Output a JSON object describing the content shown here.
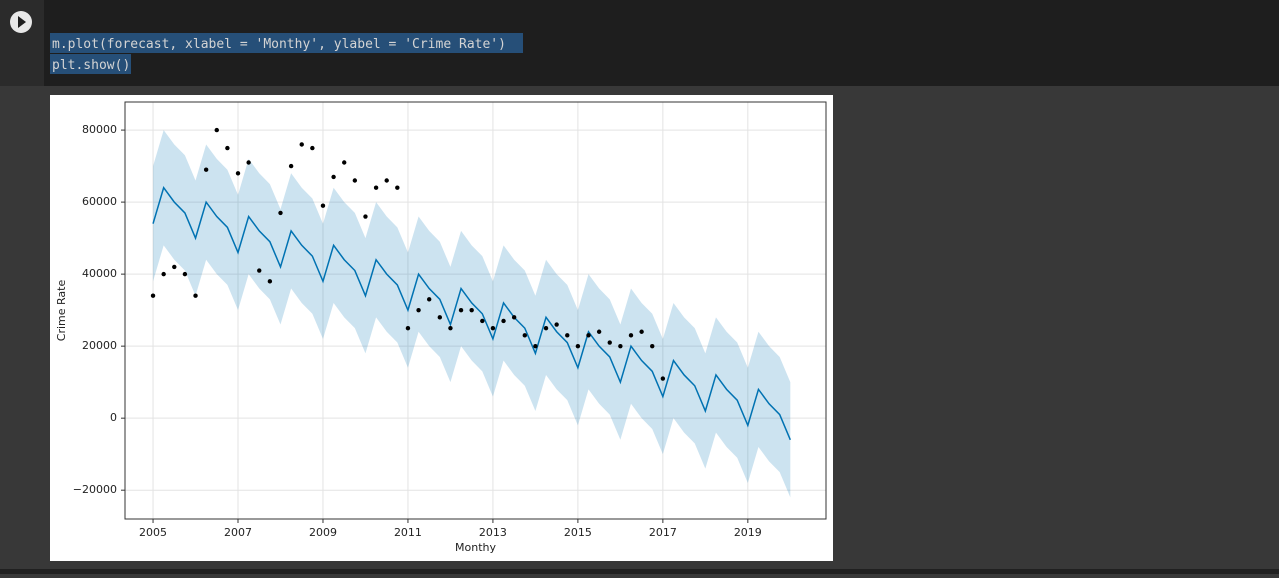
{
  "code": {
    "lines": [
      "m.plot(forecast, xlabel = 'Monthy', ylabel = 'Crime Rate')",
      "plt.show()"
    ]
  },
  "chart_data": {
    "type": "line",
    "xlabel": "Monthy",
    "ylabel": "Crime Rate",
    "xlim": [
      2004.34,
      2020.84
    ],
    "ylim": [
      -28000,
      87800
    ],
    "xticks": [
      2005,
      2007,
      2009,
      2011,
      2013,
      2015,
      2017,
      2019
    ],
    "yticks": [
      {
        "value": -20000,
        "label": "−20000"
      },
      0,
      20000,
      40000,
      60000,
      80000
    ],
    "grid": true,
    "line_color": "#0072b2",
    "band_color": "#0072b2",
    "point_color": "#000000",
    "x": [
      2005,
      2005.25,
      2005.5,
      2005.75,
      2006,
      2006.25,
      2006.5,
      2006.75,
      2007,
      2007.25,
      2007.5,
      2007.75,
      2008,
      2008.25,
      2008.5,
      2008.75,
      2009,
      2009.25,
      2009.5,
      2009.75,
      2010,
      2010.25,
      2010.5,
      2010.75,
      2011,
      2011.25,
      2011.5,
      2011.75,
      2012,
      2012.25,
      2012.5,
      2012.75,
      2013,
      2013.25,
      2013.5,
      2013.75,
      2014,
      2014.25,
      2014.5,
      2014.75,
      2015,
      2015.25,
      2015.5,
      2015.75,
      2016,
      2016.25,
      2016.5,
      2016.75,
      2017,
      2017.25,
      2017.5,
      2017.75,
      2018,
      2018.25,
      2018.5,
      2018.75,
      2019,
      2019.25,
      2019.5,
      2019.75,
      2020
    ],
    "forecast": [
      54000,
      64000,
      60000,
      57000,
      50000,
      60000,
      56000,
      53000,
      46000,
      56000,
      52000,
      49000,
      42000,
      52000,
      48000,
      45000,
      38000,
      48000,
      44000,
      41000,
      34000,
      44000,
      40000,
      37000,
      30000,
      40000,
      36000,
      33000,
      26000,
      36000,
      32000,
      29000,
      22000,
      32000,
      28000,
      25000,
      18000,
      28000,
      24000,
      21000,
      14000,
      24000,
      20000,
      17000,
      10000,
      20000,
      16000,
      13000,
      6000,
      16000,
      12000,
      9000,
      2000,
      12000,
      8000,
      5000,
      -2000,
      8000,
      4000,
      1000,
      -6000
    ],
    "lower": [
      38000,
      48000,
      44000,
      41000,
      34000,
      44000,
      40000,
      37000,
      30000,
      40000,
      36000,
      33000,
      26000,
      36000,
      32000,
      29000,
      22000,
      32000,
      28000,
      25000,
      18000,
      28000,
      24000,
      21000,
      14000,
      24000,
      20000,
      17000,
      10000,
      20000,
      16000,
      13000,
      6000,
      16000,
      12000,
      9000,
      2000,
      12000,
      8000,
      5000,
      -2000,
      8000,
      4000,
      1000,
      -6000,
      4000,
      0,
      -3000,
      -10000,
      0,
      -4000,
      -7000,
      -14000,
      -4000,
      -8000,
      -11000,
      -18000,
      -8000,
      -12000,
      -15000,
      -22000
    ],
    "upper": [
      70000,
      80000,
      76000,
      73000,
      66000,
      76000,
      72000,
      69000,
      62000,
      72000,
      68000,
      65000,
      58000,
      68000,
      64000,
      61000,
      54000,
      64000,
      60000,
      57000,
      50000,
      60000,
      56000,
      53000,
      46000,
      56000,
      52000,
      49000,
      42000,
      52000,
      48000,
      45000,
      38000,
      48000,
      44000,
      41000,
      34000,
      44000,
      40000,
      37000,
      30000,
      40000,
      36000,
      33000,
      26000,
      36000,
      32000,
      29000,
      22000,
      32000,
      28000,
      25000,
      18000,
      28000,
      24000,
      21000,
      14000,
      24000,
      20000,
      17000,
      10000
    ],
    "observed_x": [
      2005,
      2005.25,
      2005.5,
      2005.75,
      2006,
      2006.25,
      2006.5,
      2006.75,
      2007,
      2007.25,
      2007.5,
      2007.75,
      2008,
      2008.25,
      2008.5,
      2008.75,
      2009,
      2009.25,
      2009.5,
      2009.75,
      2010,
      2010.25,
      2010.5,
      2010.75,
      2011,
      2011.25,
      2011.5,
      2011.75,
      2012,
      2012.25,
      2012.5,
      2012.75,
      2013,
      2013.25,
      2013.5,
      2013.75,
      2014,
      2014.25,
      2014.5,
      2014.75,
      2015,
      2015.25,
      2015.5,
      2015.75,
      2016,
      2016.25,
      2016.5,
      2016.75,
      2017
    ],
    "observed": [
      34000,
      40000,
      42000,
      40000,
      34000,
      69000,
      80000,
      75000,
      68000,
      71000,
      41000,
      38000,
      57000,
      70000,
      76000,
      75000,
      59000,
      67000,
      71000,
      66000,
      56000,
      64000,
      66000,
      64000,
      25000,
      30000,
      33000,
      28000,
      25000,
      30000,
      30000,
      27000,
      25000,
      27000,
      28000,
      23000,
      20000,
      25000,
      26000,
      23000,
      20000,
      23000,
      24000,
      21000,
      20000,
      23000,
      24000,
      20000,
      11000
    ]
  }
}
